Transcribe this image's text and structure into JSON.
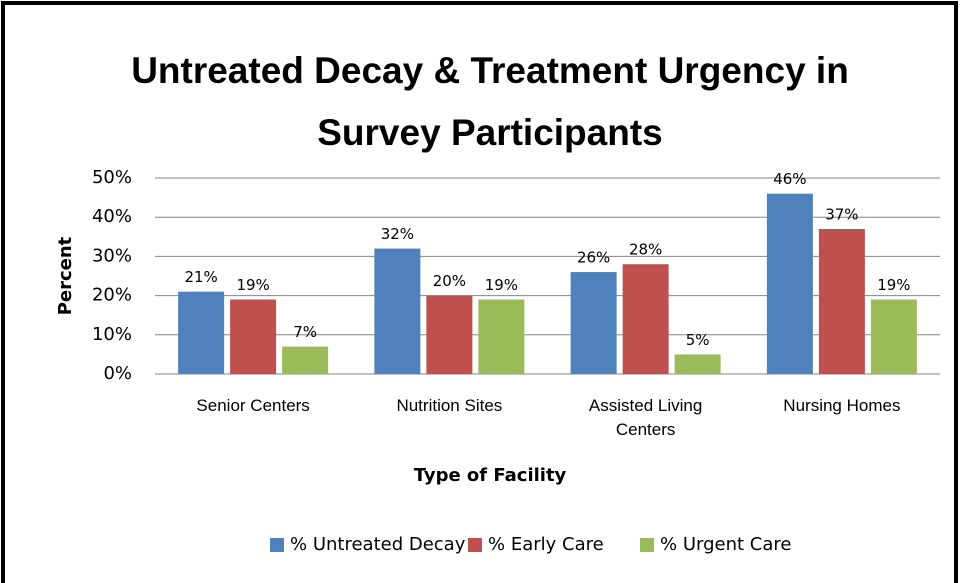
{
  "chart_data": {
    "type": "bar",
    "title": "Untreated Decay & Treatment Urgency in Survey Participants",
    "x_label": "Type of Facility",
    "y_label": "Percent",
    "categories": [
      "Senior Centers",
      "Nutrition Sites",
      "Assisted Living Centers",
      "Nursing Homes"
    ],
    "series": [
      {
        "name": "% Untreated Decay",
        "color": "#4f81bd",
        "values": [
          21,
          32,
          26,
          46
        ],
        "value_labels": [
          "21%",
          "32%",
          "26%",
          "46%"
        ]
      },
      {
        "name": "% Early Care",
        "color": "#c0504d",
        "values": [
          19,
          20,
          28,
          37
        ],
        "value_labels": [
          "19%",
          "20%",
          "28%",
          "37%"
        ]
      },
      {
        "name": "% Urgent Care",
        "color": "#9bbb59",
        "values": [
          7,
          19,
          5,
          19
        ],
        "value_labels": [
          "7%",
          "19%",
          "5%",
          "19%"
        ]
      }
    ],
    "ylim": [
      0,
      50
    ],
    "yticks": [
      {
        "value": 0,
        "label": "0%"
      },
      {
        "value": 10,
        "label": "10%"
      },
      {
        "value": 20,
        "label": "20%"
      },
      {
        "value": 30,
        "label": "30%"
      },
      {
        "value": 40,
        "label": "40%"
      },
      {
        "value": 50,
        "label": "50%"
      }
    ],
    "grid": true,
    "legend": "bottom"
  }
}
